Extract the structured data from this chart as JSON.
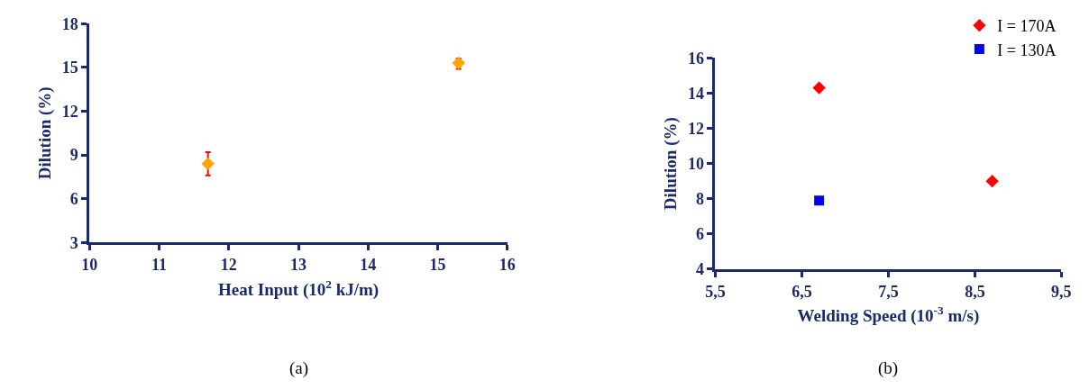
{
  "chart_data": [
    {
      "type": "scatter",
      "xlabel": "Heat Input (10$^{2}$ kJ/m)",
      "ylabel": "Dilution (%)",
      "annotations": [
        "(a)"
      ],
      "marker": "diamond",
      "grid": false,
      "legend": false,
      "xlim": [
        10,
        16
      ],
      "xticks": [
        10,
        11,
        12,
        13,
        14,
        15,
        16
      ],
      "ylim": [
        3,
        18
      ],
      "yticks": [
        3,
        6,
        9,
        12,
        15,
        18
      ],
      "series": [
        {
          "color": "#ffa500",
          "x": [
            11.7,
            15.3
          ],
          "values": [
            8.4,
            15.3
          ],
          "errors": [
            [
              7.6,
              9.2
            ],
            [
              14.9,
              15.6
            ]
          ]
        }
      ]
    },
    {
      "type": "scatter",
      "xlabel": "Welding Speed (10$^{-3}$ m/s)",
      "ylabel": "Dilution (%)",
      "annotations": [
        "(b)"
      ],
      "grid": false,
      "legend": "top right",
      "xlim": [
        5.5,
        9.5
      ],
      "xticks": [
        {
          "value": 5.5,
          "label": "5,5"
        },
        {
          "value": 6.5,
          "label": "6,5"
        },
        {
          "value": 7.5,
          "label": "7,5"
        },
        {
          "value": 8.5,
          "label": "8,5"
        },
        {
          "value": 9.5,
          "label": "9,5"
        }
      ],
      "ylim": [
        4,
        16
      ],
      "yticks": [
        4,
        6,
        8,
        10,
        12,
        14,
        16
      ],
      "series": [
        {
          "name": "I = 170A",
          "color": "#ff0000",
          "marker": "diamond",
          "x": [
            6.7,
            8.7
          ],
          "values": [
            14.3,
            9.0
          ]
        },
        {
          "name": "I = 130A",
          "color": "#0000ff",
          "marker": "square",
          "x": [
            6.7
          ],
          "values": [
            7.9
          ]
        }
      ]
    }
  ]
}
